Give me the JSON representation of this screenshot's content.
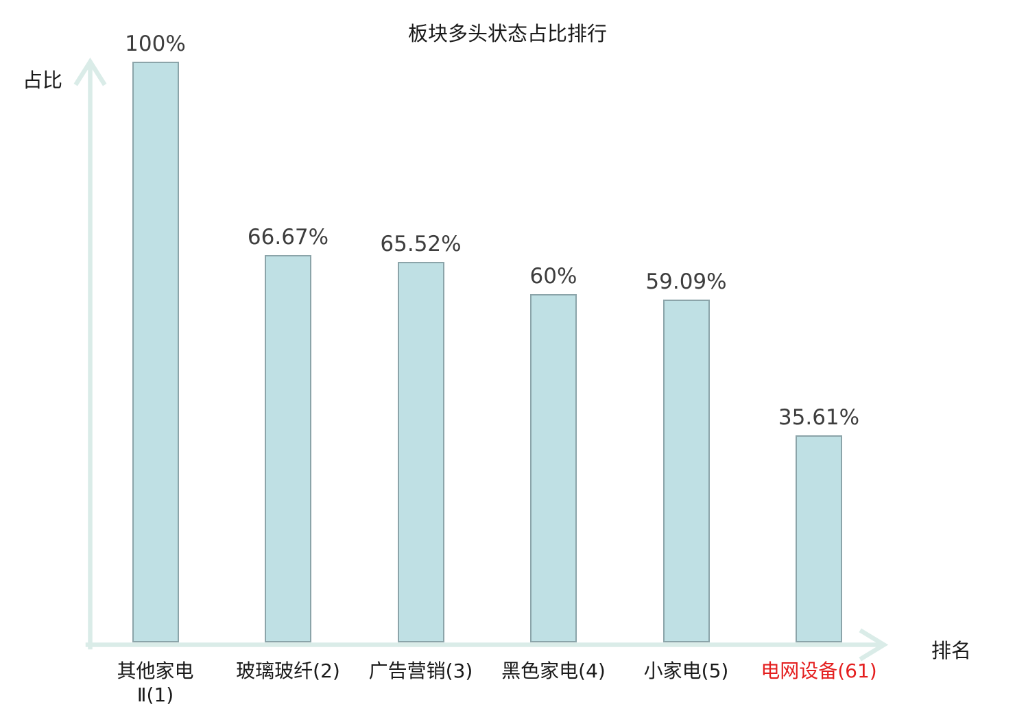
{
  "chart_data": {
    "type": "bar",
    "title": "板块多头状态占比排行",
    "xlabel": "排名",
    "ylabel": "占比",
    "ylim": [
      0,
      100
    ],
    "grid": false,
    "legend_position": "none",
    "colors": {
      "bar_fill": "#bfe0e4",
      "bar_border": "#8ba4a9",
      "axis": "#daece8",
      "value_label": "#3d3d3d",
      "category_label": "#1a1a1a",
      "highlight_category": "#e41e1e"
    },
    "categories": [
      "其他家电Ⅱ(1)",
      "玻璃玻纤(2)",
      "广告营销(3)",
      "黑色家电(4)",
      "小家电(5)",
      "电网设备(61)"
    ],
    "values": [
      100,
      66.67,
      65.52,
      60,
      59.09,
      35.61
    ],
    "bars": [
      {
        "category_lines": [
          "其他家电",
          "Ⅱ(1)"
        ],
        "value": 100,
        "value_label": "100%",
        "highlight": false
      },
      {
        "category_lines": [
          "玻璃玻纤(2)"
        ],
        "value": 66.67,
        "value_label": "66.67%",
        "highlight": false
      },
      {
        "category_lines": [
          "广告营销(3)"
        ],
        "value": 65.52,
        "value_label": "65.52%",
        "highlight": false
      },
      {
        "category_lines": [
          "黑色家电(4)"
        ],
        "value": 60,
        "value_label": "60%",
        "highlight": false
      },
      {
        "category_lines": [
          "小家电(5)"
        ],
        "value": 59.09,
        "value_label": "59.09%",
        "highlight": false
      },
      {
        "category_lines": [
          "电网设备(61)"
        ],
        "value": 35.61,
        "value_label": "35.61%",
        "highlight": true
      }
    ]
  }
}
